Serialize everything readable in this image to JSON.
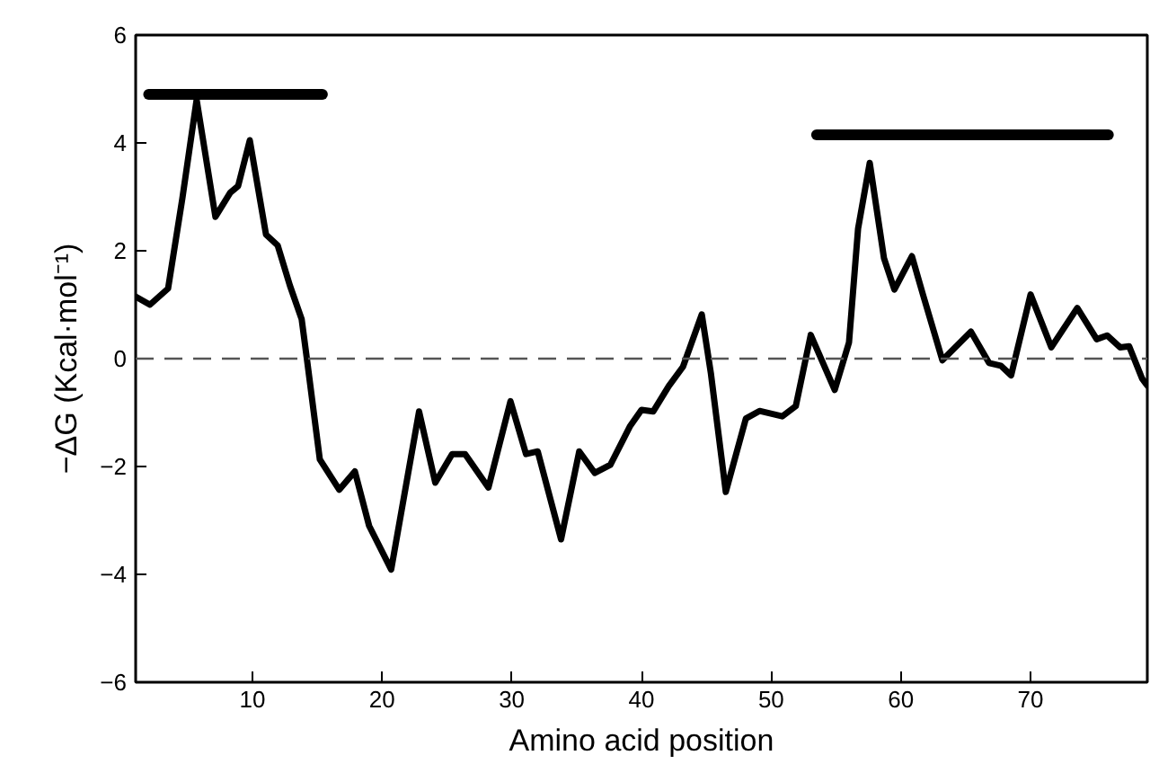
{
  "chart_data": {
    "type": "line",
    "xlabel": "Amino acid position",
    "ylabel": "−ΔG (Kcal·mol⁻¹)",
    "xlim": [
      1,
      79
    ],
    "ylim": [
      -6,
      6
    ],
    "xticks": [
      10,
      20,
      30,
      40,
      50,
      60,
      70
    ],
    "yticks": [
      -6,
      -4,
      -2,
      0,
      2,
      4,
      6
    ],
    "grid": false,
    "marker": "none",
    "line_style": "solid",
    "ref_lines": [
      {
        "axis": "y",
        "value": 0,
        "color": "#555555",
        "line_style": "dashed"
      }
    ],
    "series": [
      {
        "color": "#000000",
        "x": [
          1,
          2.1,
          3.5,
          4.6,
          5.7,
          7.15,
          8.3,
          8.9,
          9.8,
          11.05,
          11.95,
          12.9,
          13.8,
          14.2,
          15.2,
          16.7,
          17.9,
          19.0,
          20.7,
          22.85,
          24.1,
          25.4,
          26.4,
          28.2,
          29.9,
          31.1,
          32.0,
          33.8,
          35.2,
          36.4,
          37.6,
          39.1,
          40.0,
          40.9,
          42.1,
          43.2,
          44.65,
          45.35,
          46.5,
          48.05,
          49.1,
          50.85,
          51.9,
          53.05,
          54.9,
          56.0,
          56.7,
          57.6,
          58.7,
          59.5,
          60.85,
          61.7,
          63.2,
          65.4,
          66.8,
          67.7,
          68.5,
          70.0,
          71.6,
          73.6,
          75.1,
          75.9,
          76.9,
          77.6,
          78.6,
          79
        ],
        "values": [
          1.15,
          1.0,
          1.3,
          2.97,
          4.8,
          2.63,
          3.08,
          3.2,
          4.05,
          2.3,
          2.1,
          1.35,
          0.73,
          0.0,
          -1.87,
          -2.43,
          -2.09,
          -3.1,
          -3.91,
          -0.98,
          -2.3,
          -1.77,
          -1.77,
          -2.39,
          -0.79,
          -1.77,
          -1.72,
          -3.35,
          -1.72,
          -2.12,
          -1.97,
          -1.26,
          -0.95,
          -0.98,
          -0.51,
          -0.15,
          0.82,
          -0.27,
          -2.47,
          -1.11,
          -0.97,
          -1.07,
          -0.88,
          0.44,
          -0.58,
          0.3,
          2.41,
          3.63,
          1.86,
          1.28,
          1.9,
          1.19,
          -0.03,
          0.5,
          -0.08,
          -0.13,
          -0.31,
          1.19,
          0.21,
          0.94,
          0.36,
          0.43,
          0.21,
          0.23,
          -0.37,
          -0.5
        ]
      },
      {
        "color": "#000000",
        "x": [
          2,
          15.4
        ],
        "values": [
          4.9,
          4.9
        ]
      },
      {
        "color": "#000000",
        "x": [
          53.5,
          76
        ],
        "values": [
          4.15,
          4.15
        ]
      }
    ]
  }
}
